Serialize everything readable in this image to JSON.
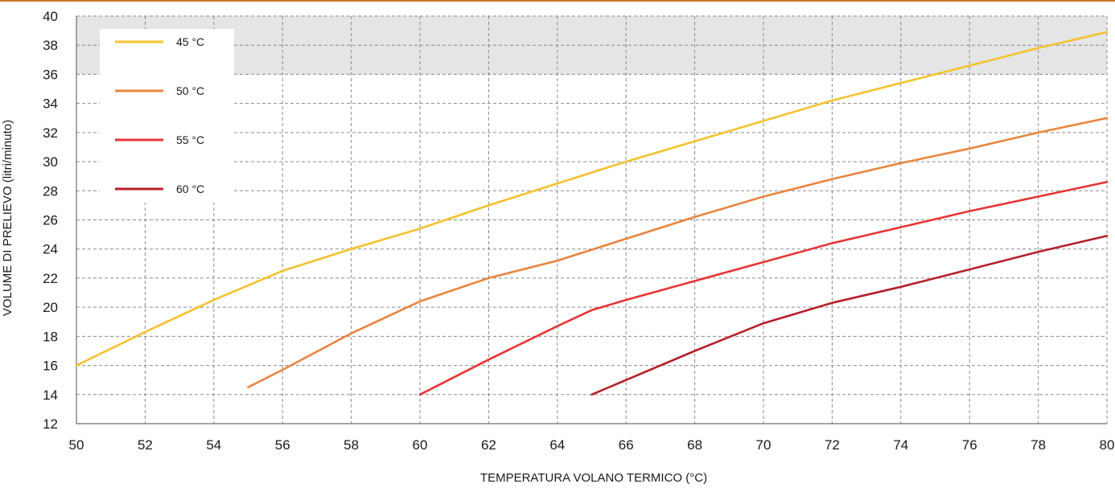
{
  "chart_data": {
    "type": "line",
    "title": "",
    "xlabel": "TEMPERATURA VOLANO TERMICO (°C)",
    "ylabel": "VOLUME DI PRELIEVO (litri/minuto)",
    "xlim": [
      50,
      80
    ],
    "ylim": [
      12,
      40
    ],
    "x_ticks": [
      50,
      52,
      54,
      56,
      58,
      60,
      62,
      64,
      66,
      68,
      70,
      72,
      74,
      76,
      78,
      80
    ],
    "y_ticks": [
      12,
      14,
      16,
      18,
      20,
      22,
      24,
      26,
      28,
      30,
      32,
      34,
      36,
      38,
      40
    ],
    "grid": true,
    "shaded_band": [
      36,
      40
    ],
    "legend_position": "top-left",
    "series": [
      {
        "name": "45 °C",
        "color": "#f5c22e",
        "x": [
          50,
          52,
          54,
          56,
          58,
          60,
          62,
          64,
          66,
          68,
          70,
          72,
          74,
          76,
          78,
          80
        ],
        "y": [
          16,
          18.3,
          20.5,
          22.5,
          24,
          25.4,
          27,
          28.5,
          30,
          31.4,
          32.8,
          34.2,
          35.4,
          36.6,
          37.8,
          38.9
        ]
      },
      {
        "name": "50 °C",
        "color": "#ea8540",
        "x": [
          55,
          56,
          58,
          60,
          62,
          64,
          66,
          68,
          70,
          72,
          74,
          76,
          78,
          80
        ],
        "y": [
          14.5,
          15.7,
          18.2,
          20.4,
          22,
          23.2,
          24.7,
          26.2,
          27.6,
          28.8,
          29.9,
          30.9,
          32,
          33
        ]
      },
      {
        "name": "55 °C",
        "color": "#e83535",
        "x": [
          60,
          62,
          64,
          65,
          66,
          68,
          70,
          72,
          74,
          76,
          78,
          80
        ],
        "y": [
          14,
          16.4,
          18.7,
          19.8,
          20.5,
          21.8,
          23.1,
          24.4,
          25.5,
          26.6,
          27.6,
          28.6
        ]
      },
      {
        "name": "60 °C",
        "color": "#b5202a",
        "x": [
          65,
          66,
          68,
          70,
          72,
          74,
          76,
          78,
          80
        ],
        "y": [
          14,
          15,
          17,
          18.9,
          20.3,
          21.4,
          22.6,
          23.8,
          24.9
        ]
      }
    ]
  }
}
